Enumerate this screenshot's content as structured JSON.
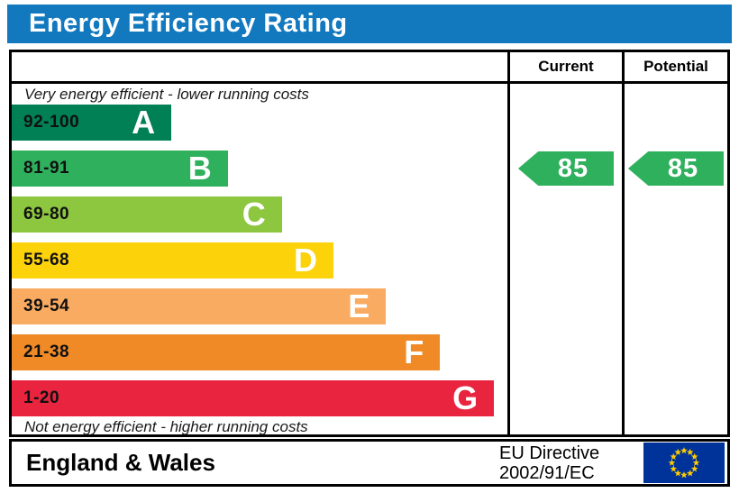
{
  "title": "Energy Efficiency Rating",
  "header": {
    "current": "Current",
    "potential": "Potential"
  },
  "notes": {
    "top": "Very energy efficient - lower running costs",
    "bottom": "Not energy efficient - higher running costs"
  },
  "chart_data": {
    "type": "bar",
    "title": "Energy Efficiency Rating",
    "bands": [
      {
        "letter": "A",
        "range": "92-100",
        "color": "#008054",
        "width_pct": 32.2
      },
      {
        "letter": "B",
        "range": "81-91",
        "color": "#2eb05c",
        "width_pct": 43.6
      },
      {
        "letter": "C",
        "range": "69-80",
        "color": "#8dc63f",
        "width_pct": 54.5
      },
      {
        "letter": "D",
        "range": "55-68",
        "color": "#fcd20b",
        "width_pct": 64.9
      },
      {
        "letter": "E",
        "range": "39-54",
        "color": "#f9ab62",
        "width_pct": 75.5
      },
      {
        "letter": "F",
        "range": "21-38",
        "color": "#ef8a26",
        "width_pct": 86.4
      },
      {
        "letter": "G",
        "range": "1-20",
        "color": "#e9243f",
        "width_pct": 97.3
      }
    ],
    "current": {
      "value": 85,
      "band": "B",
      "color": "#2eb05c"
    },
    "potential": {
      "value": 85,
      "band": "B",
      "color": "#2eb05c"
    }
  },
  "footer": {
    "region": "England & Wales",
    "directive_line1": "EU Directive",
    "directive_line2": "2002/91/EC",
    "eu_flag": {
      "background": "#003399",
      "star_color": "#ffcc00",
      "stars": 12
    }
  }
}
